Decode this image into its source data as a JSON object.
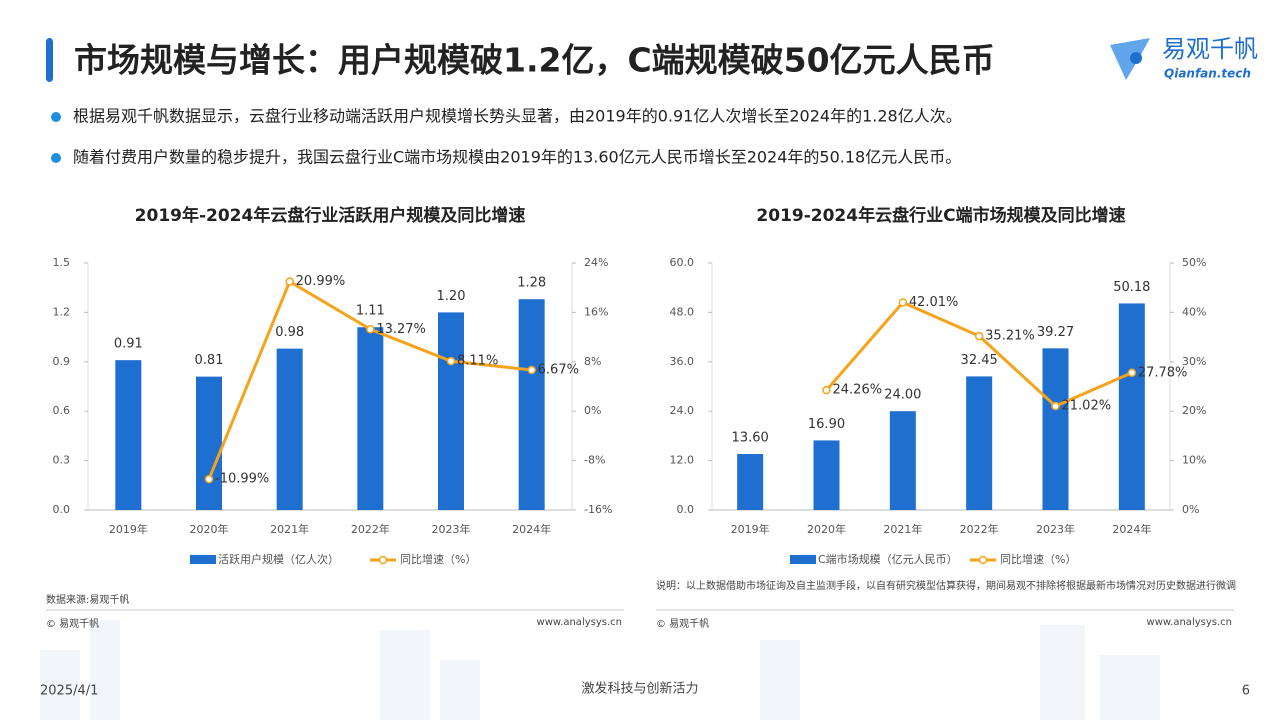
{
  "header": {
    "title": "市场规模与增长：用户规模破1.2亿，C端规模破50亿元人民币",
    "logo": "易观千帆",
    "logo_sub": "Qianfan.tech"
  },
  "bullets": [
    "根据易观千帆数据显示，云盘行业移动端活跃用户规模增长势头显著，由2019年的0.91亿人次增长至2024年的1.28亿人次。",
    "随着付费用户数量的稳步提升，我国云盘行业C端市场规模由2019年的13.60亿元人民币增长至2024年的50.18亿元人民币。"
  ],
  "chart_data": [
    {
      "type": "bar_line",
      "title": "2019年-2024年云盘行业活跃用户规模及同比增速",
      "categories": [
        "2019年",
        "2020年",
        "2021年",
        "2022年",
        "2023年",
        "2024年"
      ],
      "series": [
        {
          "name": "活跃用户规模（亿人次）",
          "type": "bar",
          "color": "#1f6fd1",
          "values": [
            0.91,
            0.81,
            0.98,
            1.11,
            1.2,
            1.28
          ],
          "value_labels": [
            "0.91",
            "0.81",
            "0.98",
            "1.11",
            "1.20",
            "1.28"
          ]
        },
        {
          "name": "同比增速（%）",
          "type": "line",
          "axis": "y2",
          "color": "#f5a31a",
          "values": [
            null,
            -10.99,
            20.99,
            13.27,
            8.11,
            6.67
          ],
          "value_labels": [
            null,
            "-10.99%",
            "20.99%",
            "13.27%",
            "8.11%",
            "6.67%"
          ]
        }
      ],
      "ylim": [
        0,
        1.5
      ],
      "yticks": [
        {
          "value": 0,
          "label": "0.0"
        },
        0.3,
        0.6,
        0.9,
        1.2,
        1.5
      ],
      "y2lim": [
        -16,
        24
      ],
      "y2ticks": [
        {
          "value": -16,
          "label": "-16%"
        },
        {
          "value": -8,
          "label": "-8%"
        },
        {
          "value": 0,
          "label": "0%"
        },
        {
          "value": 8,
          "label": "8%"
        },
        {
          "value": 16,
          "label": "16%"
        },
        {
          "value": 24,
          "label": "24%"
        }
      ],
      "source": "数据来源:易观千帆",
      "copyright": "© 易观千帆",
      "site": "www.analysys.cn"
    },
    {
      "type": "bar_line",
      "title": "2019-2024年云盘行业C端市场规模及同比增速",
      "categories": [
        "2019年",
        "2020年",
        "2021年",
        "2022年",
        "2023年",
        "2024年"
      ],
      "series": [
        {
          "name": "C端市场规模（亿元人民币）",
          "type": "bar",
          "color": "#1f6fd1",
          "values": [
            13.6,
            16.9,
            24.0,
            32.45,
            39.27,
            50.18
          ],
          "value_labels": [
            "13.60",
            "16.90",
            "24.00",
            "32.45",
            "39.27",
            "50.18"
          ]
        },
        {
          "name": "同比增速（%）",
          "type": "line",
          "axis": "y2",
          "color": "#f5a31a",
          "values": [
            null,
            24.26,
            42.01,
            35.21,
            21.02,
            27.78
          ],
          "value_labels": [
            null,
            "24.26%",
            "42.01%",
            "35.21%",
            "21.02%",
            "27.78%"
          ]
        }
      ],
      "ylim": [
        0,
        60
      ],
      "yticks": [
        {
          "value": 0,
          "label": "0.0"
        },
        {
          "value": 12,
          "label": "12.0"
        },
        {
          "value": 24,
          "label": "24.0"
        },
        {
          "value": 36,
          "label": "36.0"
        },
        {
          "value": 48,
          "label": "48.0"
        },
        {
          "value": 60,
          "label": "60.0"
        }
      ],
      "y2lim": [
        0,
        50
      ],
      "y2ticks": [
        {
          "value": 0,
          "label": "0%"
        },
        {
          "value": 10,
          "label": "10%"
        },
        {
          "value": 20,
          "label": "20%"
        },
        {
          "value": 30,
          "label": "30%"
        },
        {
          "value": 40,
          "label": "40%"
        },
        {
          "value": 50,
          "label": "50%"
        }
      ],
      "source": "说明：以上数据借助市场征询及自主监测手段，以自有研究模型估算获得，期间易观不排除将根据最新市场情况对历史数据进行微调",
      "copyright": "© 易观千帆",
      "site": "www.analysys.cn"
    }
  ],
  "footer": {
    "date": "2025/4/1",
    "slogan": "激发科技与创新活力",
    "page": "6"
  }
}
